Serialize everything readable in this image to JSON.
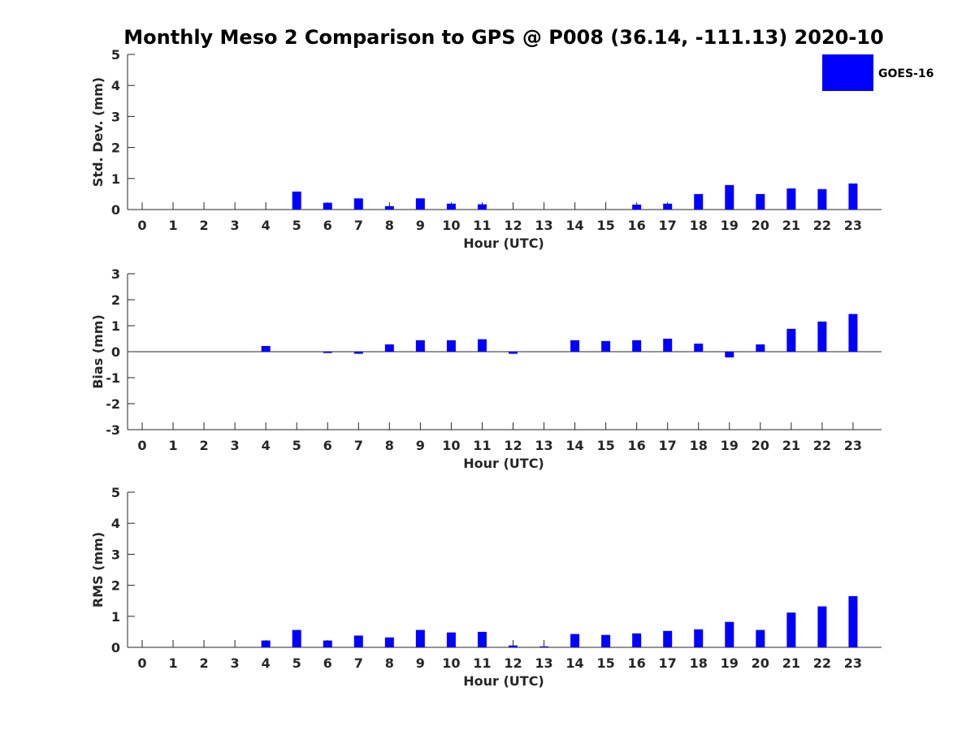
{
  "colors": {
    "bar": "#0000ff",
    "axis": "#262626",
    "title": "#000000",
    "background": "#ffffff"
  },
  "chart_data": [
    {
      "type": "bar",
      "title": "Monthly Meso 2 Comparison to GPS @ P008 (36.14, -111.13) 2020-10",
      "xlabel": "Hour (UTC)",
      "ylabel": "Std. Dev. (mm)",
      "ylim": [
        0,
        5
      ],
      "yticks": [
        0,
        1,
        2,
        3,
        4,
        5
      ],
      "categories": [
        0,
        1,
        2,
        3,
        4,
        5,
        6,
        7,
        8,
        9,
        10,
        11,
        12,
        13,
        14,
        15,
        16,
        17,
        18,
        19,
        20,
        21,
        22,
        23
      ],
      "legend": "top-right",
      "series": [
        {
          "name": "GOES-16",
          "values": [
            0,
            0,
            0,
            0,
            0,
            0.58,
            0.22,
            0.36,
            0.11,
            0.36,
            0.19,
            0.17,
            0,
            0,
            0,
            0,
            0.16,
            0.19,
            0.5,
            0.79,
            0.5,
            0.68,
            0.66,
            0.84
          ]
        }
      ]
    },
    {
      "type": "bar",
      "xlabel": "Hour (UTC)",
      "ylabel": "Bias (mm)",
      "ylim": [
        -3,
        3
      ],
      "yticks": [
        -3,
        -2,
        -1,
        0,
        1,
        2,
        3
      ],
      "categories": [
        0,
        1,
        2,
        3,
        4,
        5,
        6,
        7,
        8,
        9,
        10,
        11,
        12,
        13,
        14,
        15,
        16,
        17,
        18,
        19,
        20,
        21,
        22,
        23
      ],
      "zero_line": true,
      "series": [
        {
          "name": "GOES-16",
          "values": [
            0,
            0,
            0,
            0,
            0.22,
            0,
            -0.05,
            -0.08,
            0.28,
            0.44,
            0.44,
            0.48,
            -0.08,
            0,
            0.44,
            0.41,
            0.44,
            0.5,
            0.31,
            -0.22,
            0.28,
            0.88,
            1.16,
            1.45
          ]
        }
      ]
    },
    {
      "type": "bar",
      "xlabel": "Hour (UTC)",
      "ylabel": "RMS (mm)",
      "ylim": [
        0,
        5
      ],
      "yticks": [
        0,
        1,
        2,
        3,
        4,
        5
      ],
      "categories": [
        0,
        1,
        2,
        3,
        4,
        5,
        6,
        7,
        8,
        9,
        10,
        11,
        12,
        13,
        14,
        15,
        16,
        17,
        18,
        19,
        20,
        21,
        22,
        23
      ],
      "series": [
        {
          "name": "GOES-16",
          "values": [
            0,
            0,
            0,
            0,
            0.22,
            0.56,
            0.22,
            0.38,
            0.32,
            0.56,
            0.48,
            0.5,
            0.06,
            0.03,
            0.43,
            0.4,
            0.45,
            0.53,
            0.58,
            0.82,
            0.56,
            1.12,
            1.32,
            1.65
          ]
        }
      ]
    }
  ]
}
